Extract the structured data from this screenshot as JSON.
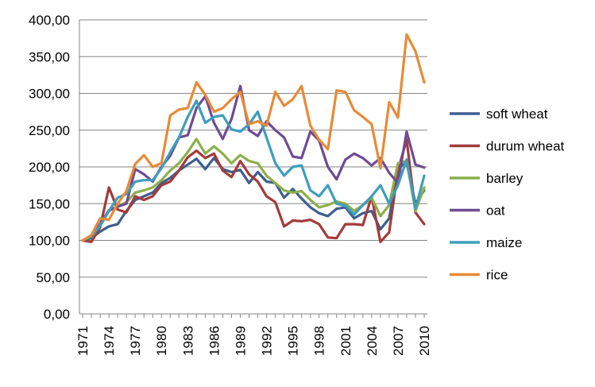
{
  "chart_data": {
    "type": "line",
    "title": "",
    "xlabel": "",
    "ylabel": "",
    "ylim": [
      0,
      400
    ],
    "yticks": [
      "0,00",
      "50,00",
      "100,00",
      "150,00",
      "200,00",
      "250,00",
      "300,00",
      "350,00",
      "400,00"
    ],
    "ytick_values": [
      0,
      50,
      100,
      150,
      200,
      250,
      300,
      350,
      400
    ],
    "xtick_labels": [
      "1971",
      "1974",
      "1977",
      "1980",
      "1983",
      "1986",
      "1989",
      "1992",
      "1995",
      "1998",
      "2001",
      "2004",
      "2007",
      "2010"
    ],
    "x": [
      1971,
      1972,
      1973,
      1974,
      1975,
      1976,
      1977,
      1978,
      1979,
      1980,
      1981,
      1982,
      1983,
      1984,
      1985,
      1986,
      1987,
      1988,
      1989,
      1990,
      1991,
      1992,
      1993,
      1994,
      1995,
      1996,
      1997,
      1998,
      1999,
      2000,
      2001,
      2002,
      2003,
      2004,
      2005,
      2006,
      2007,
      2008,
      2009,
      2010
    ],
    "grid": "horizontal",
    "legend_position": "right",
    "series": [
      {
        "name": "soft wheat",
        "color": "#3D5E8E",
        "values": [
          100,
          103,
          112,
          119,
          122,
          140,
          155,
          160,
          165,
          178,
          185,
          195,
          203,
          211,
          197,
          212,
          197,
          193,
          196,
          178,
          193,
          180,
          178,
          158,
          170,
          157,
          145,
          137,
          133,
          143,
          145,
          130,
          137,
          140,
          115,
          130,
          200,
          205,
          150,
          168
        ]
      },
      {
        "name": "durum wheat",
        "color": "#A33B3B",
        "values": [
          100,
          98,
          118,
          172,
          142,
          138,
          160,
          155,
          160,
          175,
          180,
          195,
          213,
          222,
          212,
          218,
          195,
          186,
          208,
          190,
          180,
          160,
          152,
          119,
          127,
          126,
          128,
          122,
          104,
          103,
          122,
          122,
          121,
          160,
          98,
          111,
          195,
          237,
          138,
          122
        ]
      },
      {
        "name": "barley",
        "color": "#8CB04A",
        "values": [
          100,
          105,
          120,
          140,
          146,
          152,
          165,
          168,
          172,
          182,
          195,
          205,
          220,
          238,
          218,
          228,
          218,
          205,
          216,
          208,
          205,
          188,
          178,
          168,
          165,
          167,
          155,
          145,
          148,
          153,
          150,
          140,
          148,
          158,
          133,
          148,
          205,
          208,
          140,
          172
        ]
      },
      {
        "name": "oat",
        "color": "#6E4C93",
        "values": [
          100,
          106,
          122,
          141,
          146,
          150,
          197,
          190,
          180,
          200,
          215,
          240,
          243,
          280,
          296,
          260,
          238,
          265,
          310,
          250,
          242,
          262,
          250,
          240,
          214,
          212,
          248,
          236,
          200,
          183,
          210,
          218,
          212,
          202,
          212,
          192,
          178,
          248,
          203,
          199
        ]
      },
      {
        "name": "maize",
        "color": "#3E9EBC",
        "values": [
          100,
          105,
          120,
          140,
          158,
          163,
          180,
          182,
          182,
          198,
          220,
          240,
          268,
          290,
          260,
          268,
          270,
          251,
          248,
          258,
          275,
          240,
          205,
          188,
          200,
          202,
          168,
          160,
          175,
          150,
          147,
          135,
          148,
          160,
          175,
          150,
          175,
          210,
          143,
          188
        ]
      },
      {
        "name": "rice",
        "color": "#E88A37",
        "values": [
          100,
          107,
          130,
          128,
          150,
          167,
          204,
          216,
          200,
          205,
          270,
          278,
          280,
          315,
          298,
          275,
          280,
          292,
          302,
          258,
          262,
          256,
          302,
          283,
          292,
          310,
          256,
          237,
          224,
          304,
          302,
          277,
          268,
          258,
          198,
          288,
          267,
          380,
          357,
          315
        ]
      }
    ]
  }
}
